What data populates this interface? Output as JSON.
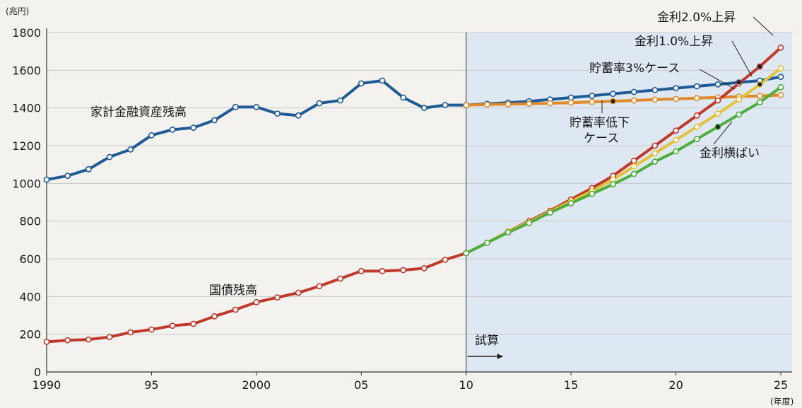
{
  "chart_data": {
    "type": "line",
    "title": "",
    "ylabel": "(兆円)",
    "xlabel": "(年度)",
    "ylim": [
      0,
      1800
    ],
    "xlim": [
      1990,
      2025
    ],
    "y_ticks": [
      0,
      200,
      400,
      600,
      800,
      1000,
      1200,
      1400,
      1600,
      1800
    ],
    "x_ticks": [
      {
        "value": 1990,
        "label": "1990"
      },
      {
        "value": 1995,
        "label": "95"
      },
      {
        "value": 2000,
        "label": "2000"
      },
      {
        "value": 2005,
        "label": "05"
      },
      {
        "value": 2010,
        "label": "10"
      },
      {
        "value": 2015,
        "label": "15"
      },
      {
        "value": 2020,
        "label": "20"
      },
      {
        "value": 2025,
        "label": "25"
      }
    ],
    "grid": true,
    "forecast_start": 2010,
    "forecast_label": "試算",
    "series": [
      {
        "key": "assets",
        "name": "家計金融資産残高",
        "color": "#1f5b96",
        "x": [
          1990,
          1991,
          1992,
          1993,
          1994,
          1995,
          1996,
          1997,
          1998,
          1999,
          2000,
          2001,
          2002,
          2003,
          2004,
          2005,
          2006,
          2007,
          2008,
          2009,
          2010
        ],
        "values": [
          1020,
          1040,
          1075,
          1140,
          1180,
          1255,
          1285,
          1295,
          1335,
          1405,
          1405,
          1370,
          1360,
          1425,
          1440,
          1530,
          1545,
          1455,
          1400,
          1415,
          1415
        ]
      },
      {
        "key": "savings3",
        "name": "貯蓄率3%ケース",
        "color": "#1f5b96",
        "x": [
          2010,
          2011,
          2012,
          2013,
          2014,
          2015,
          2016,
          2017,
          2018,
          2019,
          2020,
          2021,
          2022,
          2023,
          2024,
          2025
        ],
        "values": [
          1415,
          1422,
          1428,
          1435,
          1445,
          1455,
          1465,
          1475,
          1485,
          1495,
          1505,
          1515,
          1525,
          1535,
          1545,
          1565
        ]
      },
      {
        "key": "savings_low",
        "name": "貯蓄率低下ケース",
        "color": "#e08a2a",
        "x": [
          2010,
          2011,
          2012,
          2013,
          2014,
          2015,
          2016,
          2017,
          2018,
          2019,
          2020,
          2021,
          2022,
          2023,
          2024,
          2025
        ],
        "values": [
          1415,
          1418,
          1420,
          1422,
          1425,
          1428,
          1432,
          1436,
          1440,
          1444,
          1448,
          1452,
          1456,
          1460,
          1464,
          1468
        ]
      },
      {
        "key": "debt",
        "name": "国債残高",
        "color": "#c0392b",
        "x": [
          1990,
          1991,
          1992,
          1993,
          1994,
          1995,
          1996,
          1997,
          1998,
          1999,
          2000,
          2001,
          2002,
          2003,
          2004,
          2005,
          2006,
          2007,
          2008,
          2009,
          2010
        ],
        "values": [
          160,
          168,
          172,
          185,
          210,
          225,
          245,
          255,
          295,
          330,
          370,
          395,
          420,
          455,
          495,
          535,
          535,
          540,
          550,
          595,
          630
        ]
      },
      {
        "key": "rate2",
        "name": "金利2.0%上昇",
        "color": "#c0392b",
        "x": [
          2010,
          2011,
          2012,
          2013,
          2014,
          2015,
          2016,
          2017,
          2018,
          2019,
          2020,
          2021,
          2022,
          2023,
          2024,
          2025
        ],
        "values": [
          630,
          685,
          745,
          800,
          855,
          915,
          975,
          1040,
          1120,
          1200,
          1280,
          1360,
          1440,
          1530,
          1620,
          1720
        ]
      },
      {
        "key": "rate1",
        "name": "金利1.0%上昇",
        "color": "#e2c23a",
        "x": [
          2010,
          2011,
          2012,
          2013,
          2014,
          2015,
          2016,
          2017,
          2018,
          2019,
          2020,
          2021,
          2022,
          2023,
          2024,
          2025
        ],
        "values": [
          630,
          685,
          745,
          795,
          850,
          905,
          960,
          1020,
          1090,
          1160,
          1230,
          1300,
          1370,
          1445,
          1525,
          1610
        ]
      },
      {
        "key": "rate0",
        "name": "金利横ばい",
        "color": "#4caf3c",
        "x": [
          2010,
          2011,
          2012,
          2013,
          2014,
          2015,
          2016,
          2017,
          2018,
          2019,
          2020,
          2021,
          2022,
          2023,
          2024,
          2025
        ],
        "values": [
          630,
          685,
          740,
          790,
          845,
          895,
          945,
          995,
          1050,
          1115,
          1170,
          1235,
          1300,
          1365,
          1430,
          1510
        ]
      }
    ],
    "annotations": [
      {
        "text": "家計金融資産残高",
        "series": "assets",
        "placement": "left-middle"
      },
      {
        "text": "国債残高",
        "series": "debt",
        "placement": "bottom-middle"
      },
      {
        "text": "金利2.0%上昇",
        "series": "rate2",
        "placement": "top-right"
      },
      {
        "text": "金利1.0%上昇",
        "series": "rate1",
        "placement": "top-right"
      },
      {
        "text": "貯蓄率3%ケース",
        "series": "savings3",
        "placement": "right-upper"
      },
      {
        "text": "貯蓄率低下ケース",
        "series": "savings_low",
        "placement": "right-middle"
      },
      {
        "text": "金利横ばい",
        "series": "rate0",
        "placement": "right-lower"
      }
    ]
  }
}
